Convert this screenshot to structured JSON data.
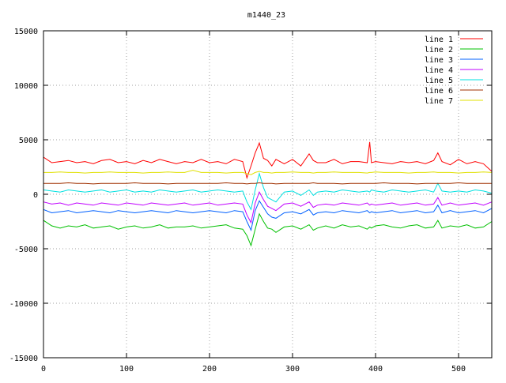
{
  "chart_data": {
    "type": "line",
    "title": "m1440_23",
    "xlabel": "",
    "ylabel": "",
    "xlim": [
      0,
      540
    ],
    "ylim": [
      -15000,
      15000
    ],
    "x_ticks": [
      0,
      100,
      200,
      300,
      400,
      500
    ],
    "y_ticks": [
      -15000,
      -10000,
      -5000,
      0,
      5000,
      10000,
      15000
    ],
    "grid": true,
    "legend_position": "top-right",
    "x": [
      0,
      10,
      20,
      30,
      40,
      50,
      60,
      70,
      80,
      90,
      100,
      110,
      120,
      130,
      140,
      150,
      160,
      170,
      180,
      190,
      200,
      210,
      220,
      230,
      240,
      245,
      250,
      255,
      260,
      265,
      270,
      275,
      280,
      290,
      300,
      310,
      320,
      325,
      330,
      340,
      350,
      360,
      370,
      380,
      390,
      393,
      395,
      400,
      410,
      420,
      430,
      440,
      450,
      460,
      470,
      475,
      480,
      490,
      500,
      510,
      520,
      530,
      540
    ],
    "series": [
      {
        "name": "line 1",
        "color": "#ff0000",
        "values": [
          3400,
          2900,
          3000,
          3100,
          2900,
          3000,
          2800,
          3100,
          3200,
          2900,
          3000,
          2800,
          3100,
          2900,
          3200,
          3000,
          2800,
          3000,
          2900,
          3200,
          2900,
          3000,
          2800,
          3200,
          3000,
          1500,
          2600,
          3800,
          4700,
          3300,
          3100,
          2600,
          3200,
          2800,
          3200,
          2600,
          3700,
          3100,
          2900,
          2900,
          3200,
          2800,
          3000,
          3000,
          2900,
          4800,
          2900,
          3000,
          2900,
          2800,
          3000,
          2900,
          3000,
          2800,
          3100,
          3800,
          3000,
          2700,
          3200,
          2800,
          3000,
          2800,
          2100
        ]
      },
      {
        "name": "line 2",
        "color": "#00c000",
        "values": [
          -2400,
          -2900,
          -3100,
          -2900,
          -3000,
          -2800,
          -3100,
          -3000,
          -2900,
          -3200,
          -3000,
          -2900,
          -3100,
          -3000,
          -2800,
          -3100,
          -3000,
          -3000,
          -2900,
          -3100,
          -3000,
          -2900,
          -2800,
          -3100,
          -3200,
          -3800,
          -4700,
          -3200,
          -1800,
          -2500,
          -3100,
          -3200,
          -3500,
          -3000,
          -2900,
          -3200,
          -2800,
          -3300,
          -3100,
          -2900,
          -3100,
          -2800,
          -3000,
          -2900,
          -3200,
          -3000,
          -3100,
          -2900,
          -2800,
          -3000,
          -3100,
          -2900,
          -2800,
          -3100,
          -3000,
          -2400,
          -3100,
          -2900,
          -3000,
          -2800,
          -3100,
          -3000,
          -2500
        ]
      },
      {
        "name": "line 3",
        "color": "#0060ff",
        "values": [
          -1400,
          -1700,
          -1600,
          -1500,
          -1700,
          -1600,
          -1500,
          -1600,
          -1700,
          -1500,
          -1600,
          -1700,
          -1600,
          -1500,
          -1600,
          -1700,
          -1500,
          -1600,
          -1700,
          -1600,
          -1500,
          -1600,
          -1700,
          -1500,
          -1600,
          -2500,
          -3300,
          -1500,
          -600,
          -1200,
          -1800,
          -2100,
          -2200,
          -1700,
          -1600,
          -1800,
          -1400,
          -1900,
          -1700,
          -1600,
          -1700,
          -1500,
          -1600,
          -1700,
          -1500,
          -1700,
          -1600,
          -1700,
          -1600,
          -1500,
          -1700,
          -1600,
          -1500,
          -1700,
          -1600,
          -1000,
          -1700,
          -1500,
          -1700,
          -1600,
          -1500,
          -1700,
          -1300
        ]
      },
      {
        "name": "line 4",
        "color": "#c000ff",
        "values": [
          -700,
          -900,
          -800,
          -1000,
          -800,
          -900,
          -1000,
          -800,
          -900,
          -1000,
          -800,
          -900,
          -1000,
          -800,
          -900,
          -1000,
          -900,
          -800,
          -1000,
          -900,
          -800,
          -1000,
          -900,
          -800,
          -900,
          -1900,
          -2600,
          -800,
          200,
          -500,
          -1100,
          -1300,
          -1500,
          -900,
          -800,
          -1100,
          -700,
          -1200,
          -1000,
          -900,
          -1000,
          -800,
          -900,
          -1000,
          -800,
          -1000,
          -900,
          -1000,
          -900,
          -800,
          -1000,
          -900,
          -800,
          -1000,
          -900,
          -300,
          -1000,
          -800,
          -1000,
          -900,
          -800,
          -1000,
          -700
        ]
      },
      {
        "name": "line 5",
        "color": "#00e0e0",
        "values": [
          400,
          300,
          200,
          400,
          300,
          200,
          300,
          400,
          200,
          300,
          400,
          200,
          300,
          200,
          400,
          300,
          200,
          300,
          400,
          200,
          300,
          400,
          300,
          200,
          300,
          -700,
          -1400,
          400,
          1900,
          600,
          -300,
          -500,
          -700,
          200,
          300,
          -100,
          400,
          -100,
          200,
          300,
          200,
          400,
          300,
          200,
          300,
          200,
          400,
          300,
          200,
          400,
          300,
          200,
          300,
          400,
          200,
          1000,
          300,
          200,
          300,
          200,
          400,
          300,
          100
        ]
      },
      {
        "name": "line 6",
        "color": "#a03000",
        "values": [
          1000,
          1000,
          1000,
          1050,
          1000,
          1000,
          950,
          1000,
          1000,
          1000,
          1000,
          1050,
          1000,
          1000,
          1000,
          950,
          1000,
          1000,
          1000,
          1000,
          1000,
          1000,
          1050,
          1000,
          1000,
          950,
          1000,
          1000,
          1050,
          1000,
          1000,
          1000,
          950,
          1000,
          1000,
          1000,
          1000,
          1050,
          1000,
          1000,
          1000,
          950,
          1000,
          1000,
          1000,
          1000,
          1000,
          1000,
          1050,
          1000,
          1000,
          1000,
          950,
          1000,
          1000,
          1000,
          1000,
          1000,
          1050,
          1000,
          1000,
          1000,
          1000
        ]
      },
      {
        "name": "line 7",
        "color": "#e0e000",
        "values": [
          2000,
          2000,
          2050,
          2000,
          2000,
          1950,
          2000,
          2000,
          2050,
          2000,
          2000,
          2000,
          1950,
          2000,
          2000,
          2050,
          2000,
          2000,
          2200,
          2000,
          2000,
          2000,
          1950,
          2000,
          2000,
          1900,
          1800,
          2000,
          2100,
          2000,
          2000,
          1950,
          2000,
          2000,
          2050,
          2000,
          2000,
          1950,
          2000,
          2000,
          2050,
          2000,
          2000,
          2000,
          1950,
          2000,
          2000,
          2050,
          2000,
          2000,
          2000,
          1950,
          2000,
          2000,
          2050,
          2000,
          2000,
          2000,
          1950,
          2000,
          2000,
          2050,
          2000
        ]
      }
    ]
  }
}
